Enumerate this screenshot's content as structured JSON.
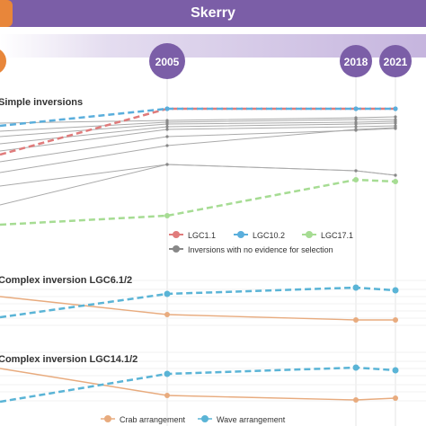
{
  "header": {
    "title": "Skerry"
  },
  "chart_data": {
    "type": "line",
    "years": [
      "2005",
      "2018",
      "2021"
    ],
    "panels": [
      {
        "title": "Simple inversions",
        "legend": [
          {
            "label": "LGC1.1",
            "color": "#e07b7b"
          },
          {
            "label": "LGC10.2",
            "color": "#5aaedc"
          },
          {
            "label": "LGC17.1",
            "color": "#a6dc93"
          },
          {
            "label": "Inversions with no evidence for selection",
            "color": "#888888"
          }
        ]
      },
      {
        "title": "Complex inversion LGC6.1/2",
        "legend": [
          {
            "label": "Crab arrangement",
            "color": "#e8ab7e"
          },
          {
            "label": "Wave arrangement",
            "color": "#5ab4d6"
          }
        ]
      },
      {
        "title": "Complex inversion LGC14.1/2",
        "legend": []
      }
    ]
  }
}
